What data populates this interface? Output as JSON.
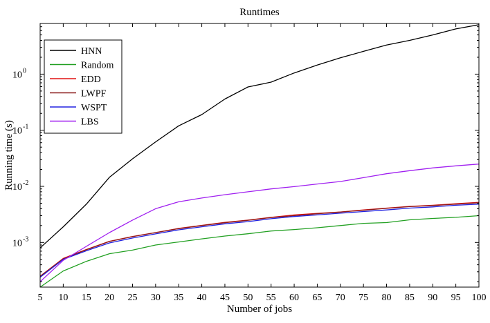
{
  "chart_data": {
    "type": "line",
    "title": "Runtimes",
    "xlabel": "Number of jobs",
    "ylabel": "Running time (s)",
    "xlim": [
      5,
      100
    ],
    "ylim": [
      0.00016,
      8
    ],
    "yscale": "log",
    "grid": false,
    "legend_position": "top-left",
    "x": [
      5,
      10,
      15,
      20,
      25,
      30,
      35,
      40,
      45,
      50,
      55,
      60,
      65,
      70,
      75,
      80,
      85,
      90,
      95,
      100
    ],
    "x_ticks": [
      "5",
      "10",
      "15",
      "20",
      "25",
      "30",
      "35",
      "40",
      "45",
      "50",
      "55",
      "60",
      "65",
      "70",
      "75",
      "80",
      "85",
      "90",
      "95",
      "100"
    ],
    "y_ticks": [
      {
        "value": 0.001,
        "base": "10",
        "exp": "-3"
      },
      {
        "value": 0.01,
        "base": "10",
        "exp": "-2"
      },
      {
        "value": 0.1,
        "base": "10",
        "exp": "-1"
      },
      {
        "value": 1,
        "base": "10",
        "exp": "0"
      }
    ],
    "series": [
      {
        "name": "HNN",
        "color": "#000000",
        "values": [
          0.0008,
          0.0019,
          0.0048,
          0.0145,
          0.031,
          0.062,
          0.12,
          0.19,
          0.36,
          0.59,
          0.72,
          1.05,
          1.45,
          1.95,
          2.55,
          3.3,
          4.0,
          5.0,
          6.4,
          7.6
        ]
      },
      {
        "name": "Random",
        "color": "#22a022",
        "values": [
          0.00016,
          0.00031,
          0.00046,
          0.00063,
          0.00073,
          0.0009,
          0.00102,
          0.00116,
          0.0013,
          0.00143,
          0.0016,
          0.0017,
          0.00183,
          0.002,
          0.00219,
          0.00226,
          0.00253,
          0.00268,
          0.0028,
          0.003
        ]
      },
      {
        "name": "EDD",
        "color": "#e01010",
        "values": [
          0.00025,
          0.00052,
          0.00075,
          0.00105,
          0.00128,
          0.0015,
          0.00178,
          0.00202,
          0.00228,
          0.0025,
          0.0028,
          0.0031,
          0.0033,
          0.0035,
          0.0038,
          0.0041,
          0.0044,
          0.0046,
          0.0049,
          0.0052
        ]
      },
      {
        "name": "LWPF",
        "color": "#8b1a1a",
        "values": [
          0.00025,
          0.00051,
          0.00074,
          0.00104,
          0.00127,
          0.0015,
          0.00176,
          0.002,
          0.00225,
          0.00248,
          0.00278,
          0.003,
          0.00325,
          0.00348,
          0.00375,
          0.00405,
          0.00435,
          0.00455,
          0.0048,
          0.0051
        ]
      },
      {
        "name": "WSPT",
        "color": "#2020e0",
        "values": [
          0.00024,
          0.0005,
          0.00071,
          0.00098,
          0.0012,
          0.00142,
          0.00168,
          0.0019,
          0.00215,
          0.00235,
          0.00265,
          0.0029,
          0.0031,
          0.00332,
          0.00356,
          0.0038,
          0.0041,
          0.0043,
          0.0046,
          0.0048
        ]
      },
      {
        "name": "LBS",
        "color": "#a020f0",
        "values": [
          0.0002,
          0.00048,
          0.00085,
          0.0015,
          0.0025,
          0.004,
          0.0053,
          0.0062,
          0.0071,
          0.008,
          0.009,
          0.0099,
          0.011,
          0.0122,
          0.0143,
          0.0168,
          0.019,
          0.0213,
          0.0232,
          0.025
        ]
      }
    ]
  }
}
